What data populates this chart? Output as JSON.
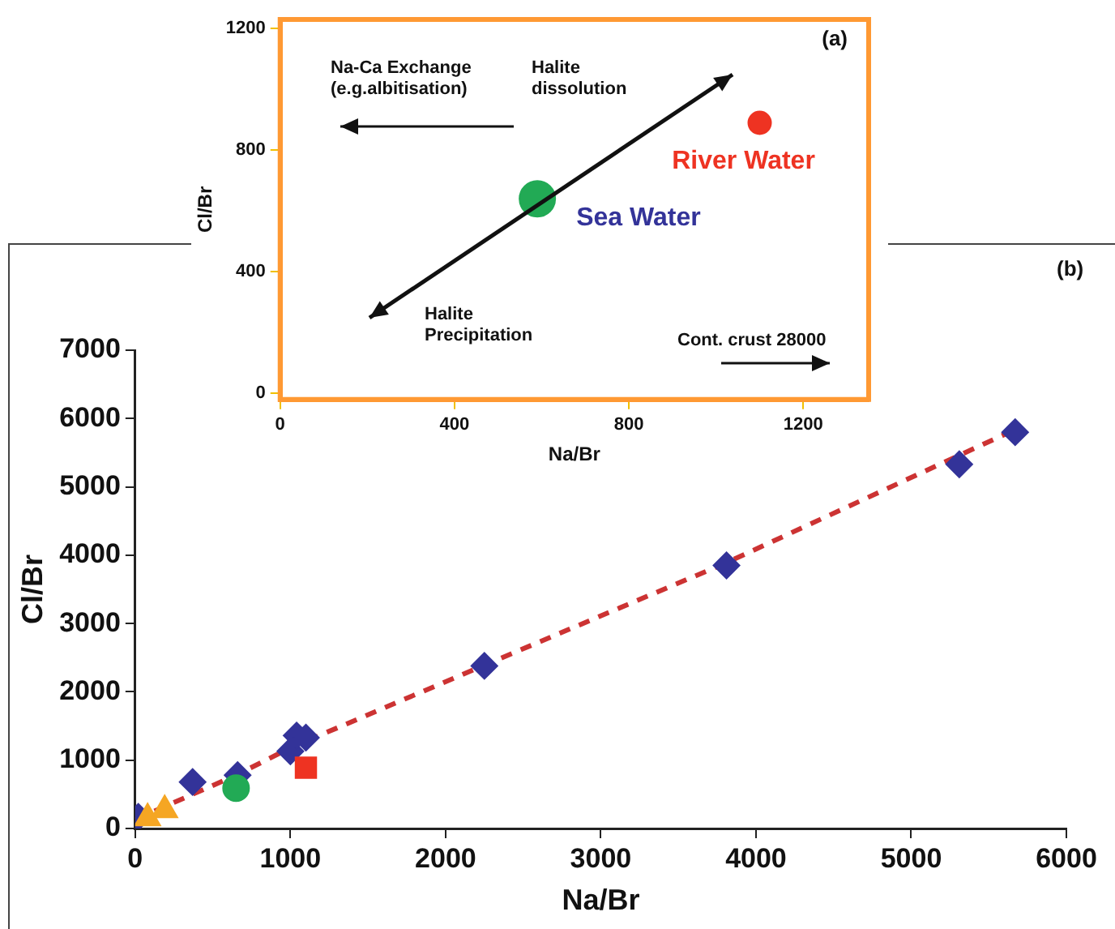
{
  "chart_data": [
    {
      "type": "scatter",
      "xlabel": "Na/Br",
      "ylabel": "Cl/Br",
      "xlim": [
        0,
        1350
      ],
      "ylim": [
        -20,
        1230
      ],
      "xticks": [
        0,
        400,
        800,
        1200
      ],
      "yticks": [
        0,
        400,
        800,
        1200
      ],
      "grid": false,
      "series": [
        {
          "name": "Sea Water",
          "color": "#22aa55",
          "marker": "circle",
          "x": [
            590
          ],
          "values": [
            640
          ]
        },
        {
          "name": "River Water",
          "color": "#ee3322",
          "marker": "circle",
          "x": [
            1100
          ],
          "values": [
            890
          ]
        }
      ],
      "annotations": [
        "(a)",
        "Na-Ca Exchange (e.g.albitisation)",
        "Halite dissolution",
        "Halite Precipitation",
        "Cont. crust 28000"
      ]
    },
    {
      "type": "scatter",
      "xlabel": "Na/Br",
      "ylabel": "Cl/Br",
      "xlim": [
        0,
        6000
      ],
      "ylim": [
        0,
        7000
      ],
      "xticks": [
        0,
        1000,
        2000,
        3000,
        4000,
        5000,
        6000
      ],
      "yticks": [
        0,
        1000,
        2000,
        3000,
        4000,
        5000,
        6000,
        7000
      ],
      "grid": false,
      "series": [
        {
          "type": "line",
          "color": "#cc3333",
          "marker": "none",
          "line_style": "dashed",
          "x": [
            0,
            650,
            1000,
            2250,
            3800,
            5700
          ],
          "values": [
            130,
            780,
            1180,
            2390,
            3880,
            5870
          ]
        },
        {
          "color": "#333399",
          "marker": "diamond",
          "x": [
            20,
            370,
            660,
            1000,
            1040,
            1100,
            2250,
            3810,
            5310,
            5670
          ],
          "values": [
            170,
            680,
            780,
            1130,
            1360,
            1330,
            2380,
            3850,
            5330,
            5800
          ]
        },
        {
          "color": "#f5a623",
          "marker": "triangle",
          "x": [
            80,
            190
          ],
          "values": [
            150,
            270
          ]
        },
        {
          "color": "#22aa55",
          "marker": "circle",
          "x": [
            650
          ],
          "values": [
            590
          ]
        },
        {
          "color": "#ee3322",
          "marker": "square",
          "x": [
            1100
          ],
          "values": [
            890
          ]
        }
      ],
      "annotations": [
        "(b)"
      ]
    }
  ]
}
